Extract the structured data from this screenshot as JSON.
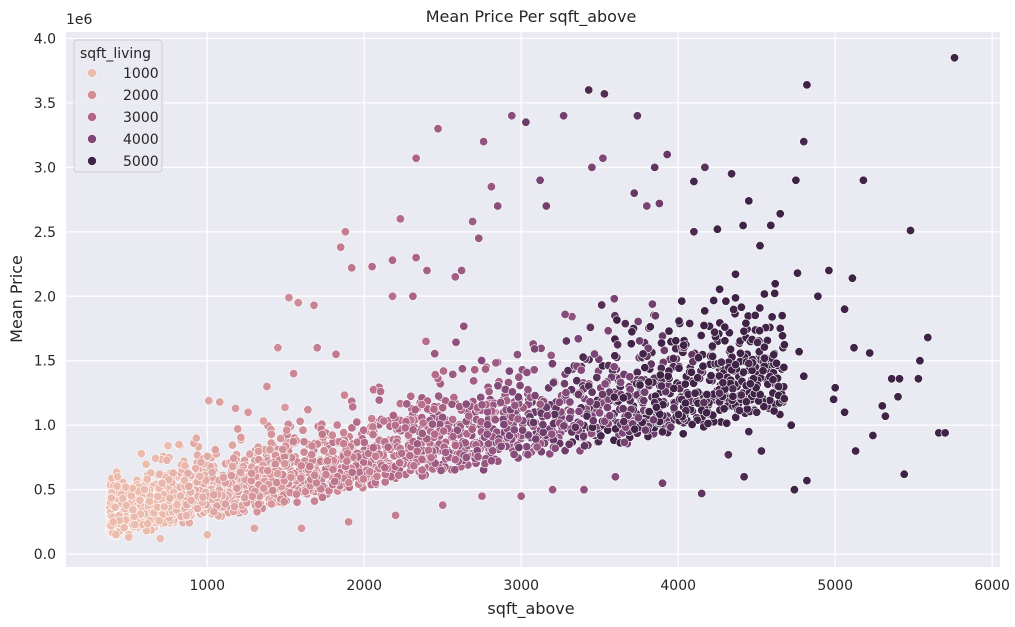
{
  "chart_data": {
    "type": "scatter",
    "title": "Mean Price Per sqft_above",
    "xlabel": "sqft_above",
    "ylabel": "Mean Price",
    "y_offset_label": "1e6",
    "xlim": [
      100,
      6050
    ],
    "ylim": [
      -0.1,
      4.05
    ],
    "x_ticks": [
      1000,
      2000,
      3000,
      4000,
      5000,
      6000
    ],
    "x_tick_labels": [
      "1000",
      "2000",
      "3000",
      "4000",
      "5000",
      "6000"
    ],
    "y_ticks": [
      0.0,
      0.5,
      1.0,
      1.5,
      2.0,
      2.5,
      3.0,
      3.5,
      4.0
    ],
    "y_tick_labels": [
      "0.0",
      "0.5",
      "1.0",
      "1.5",
      "2.0",
      "2.5",
      "3.0",
      "3.5",
      "4.0"
    ],
    "grid": true,
    "hue": "sqft_living",
    "legend": {
      "title": "sqft_living",
      "placement": "upper-left",
      "entries": [
        {
          "label": "1000",
          "value": 1000,
          "color": "#ebbcae"
        },
        {
          "label": "2000",
          "value": 2000,
          "color": "#d18e97"
        },
        {
          "label": "3000",
          "value": 3000,
          "color": "#b06787"
        },
        {
          "label": "4000",
          "value": 4000,
          "color": "#7f4879"
        },
        {
          "label": "5000",
          "value": 5000,
          "color": "#3f2346"
        }
      ]
    },
    "points": [
      [
        5760,
        3.85,
        5700
      ],
      [
        4820,
        3.64,
        5000
      ],
      [
        3430,
        3.6,
        4800
      ],
      [
        3530,
        3.57,
        4700
      ],
      [
        3740,
        3.4,
        4500
      ],
      [
        3270,
        3.4,
        4200
      ],
      [
        2940,
        3.4,
        3800
      ],
      [
        3030,
        3.35,
        4300
      ],
      [
        2470,
        3.3,
        3300
      ],
      [
        2760,
        3.2,
        3600
      ],
      [
        4800,
        3.2,
        4900
      ],
      [
        2330,
        3.07,
        3100
      ],
      [
        3520,
        3.07,
        4000
      ],
      [
        3450,
        3.0,
        4100
      ],
      [
        4170,
        3.0,
        4600
      ],
      [
        3930,
        3.1,
        4400
      ],
      [
        5180,
        2.9,
        5400
      ],
      [
        4100,
        2.89,
        4900
      ],
      [
        4750,
        2.9,
        5200
      ],
      [
        2810,
        2.85,
        3500
      ],
      [
        3720,
        2.8,
        4400
      ],
      [
        3880,
        2.72,
        4300
      ],
      [
        3800,
        2.7,
        4100
      ],
      [
        2690,
        2.58,
        3400
      ],
      [
        2230,
        2.6,
        2900
      ],
      [
        1880,
        2.5,
        2400
      ],
      [
        4340,
        2.95,
        4900
      ],
      [
        4590,
        2.55,
        5100
      ],
      [
        4250,
        2.52,
        5000
      ],
      [
        4650,
        2.64,
        5000
      ],
      [
        4100,
        2.5,
        4800
      ],
      [
        5480,
        2.51,
        5800
      ],
      [
        4960,
        2.2,
        5400
      ],
      [
        5110,
        2.14,
        5600
      ],
      [
        4890,
        2.0,
        5400
      ],
      [
        5060,
        1.9,
        5300
      ],
      [
        4450,
        2.74,
        5000
      ],
      [
        3850,
        3.0,
        4500
      ],
      [
        3160,
        2.7,
        4200
      ],
      [
        2850,
        2.7,
        3800
      ],
      [
        3120,
        2.9,
        4100
      ],
      [
        2730,
        2.45,
        3500
      ],
      [
        2400,
        2.2,
        3200
      ],
      [
        2050,
        2.23,
        2900
      ],
      [
        1920,
        2.22,
        2600
      ],
      [
        2620,
        2.2,
        3400
      ],
      [
        2580,
        2.15,
        3300
      ],
      [
        2330,
        2.3,
        3100
      ],
      [
        2180,
        2.28,
        3000
      ],
      [
        2310,
        2.0,
        3100
      ],
      [
        1850,
        2.38,
        2500
      ],
      [
        2180,
        2.0,
        2800
      ],
      [
        1520,
        1.99,
        2100
      ],
      [
        1580,
        1.95,
        2100
      ],
      [
        1680,
        1.93,
        2300
      ],
      [
        5120,
        1.6,
        5700
      ],
      [
        5220,
        1.56,
        5600
      ],
      [
        5590,
        1.68,
        6000
      ],
      [
        5540,
        1.5,
        5900
      ],
      [
        5000,
        1.29,
        5500
      ],
      [
        5360,
        1.36,
        5700
      ],
      [
        5410,
        1.36,
        5800
      ],
      [
        5530,
        1.36,
        5800
      ],
      [
        5400,
        1.22,
        5600
      ],
      [
        5300,
        1.15,
        5600
      ],
      [
        5320,
        1.07,
        5500
      ],
      [
        5240,
        0.92,
        5500
      ],
      [
        5130,
        0.8,
        5400
      ],
      [
        5060,
        1.1,
        5500
      ],
      [
        4990,
        1.2,
        5300
      ],
      [
        5660,
        0.94,
        5900
      ],
      [
        5700,
        0.94,
        5900
      ],
      [
        5440,
        0.62,
        5700
      ],
      [
        4820,
        0.57,
        5100
      ],
      [
        4740,
        0.5,
        5000
      ],
      [
        4720,
        1.0,
        5100
      ],
      [
        4770,
        1.57,
        5100
      ],
      [
        4800,
        1.38,
        5200
      ],
      [
        4760,
        2.18,
        5200
      ],
      [
        4640,
        1.3,
        5000
      ],
      [
        4550,
        1.52,
        5000
      ],
      [
        4500,
        1.1,
        4900
      ],
      [
        4420,
        0.6,
        4800
      ],
      [
        4530,
        0.8,
        4900
      ],
      [
        4450,
        0.95,
        4900
      ],
      [
        4150,
        0.47,
        4500
      ],
      [
        4320,
        0.77,
        4700
      ],
      [
        3900,
        0.55,
        4200
      ],
      [
        3600,
        0.6,
        3900
      ],
      [
        3400,
        0.5,
        3700
      ],
      [
        3200,
        0.5,
        3500
      ],
      [
        3000,
        0.45,
        3300
      ],
      [
        2750,
        0.45,
        3000
      ],
      [
        2500,
        0.38,
        2800
      ],
      [
        2200,
        0.3,
        2400
      ],
      [
        1900,
        0.25,
        2100
      ],
      [
        1600,
        0.2,
        1800
      ],
      [
        1300,
        0.2,
        1500
      ],
      [
        1000,
        0.15,
        1100
      ],
      [
        700,
        0.12,
        800
      ],
      [
        500,
        0.13,
        600
      ],
      [
        400,
        0.25,
        500
      ],
      [
        480,
        0.52,
        700
      ],
      [
        580,
        0.78,
        800
      ],
      [
        750,
        0.84,
        1000
      ],
      [
        820,
        0.85,
        1100
      ],
      [
        930,
        0.9,
        1300
      ],
      [
        1010,
        1.19,
        1500
      ],
      [
        1080,
        1.18,
        1600
      ],
      [
        1180,
        1.13,
        1700
      ],
      [
        1260,
        1.1,
        1800
      ],
      [
        1380,
        1.3,
        2000
      ],
      [
        1450,
        1.6,
        2100
      ],
      [
        1550,
        1.4,
        2200
      ],
      [
        1700,
        1.6,
        2400
      ],
      [
        1820,
        1.55,
        2500
      ]
    ]
  }
}
